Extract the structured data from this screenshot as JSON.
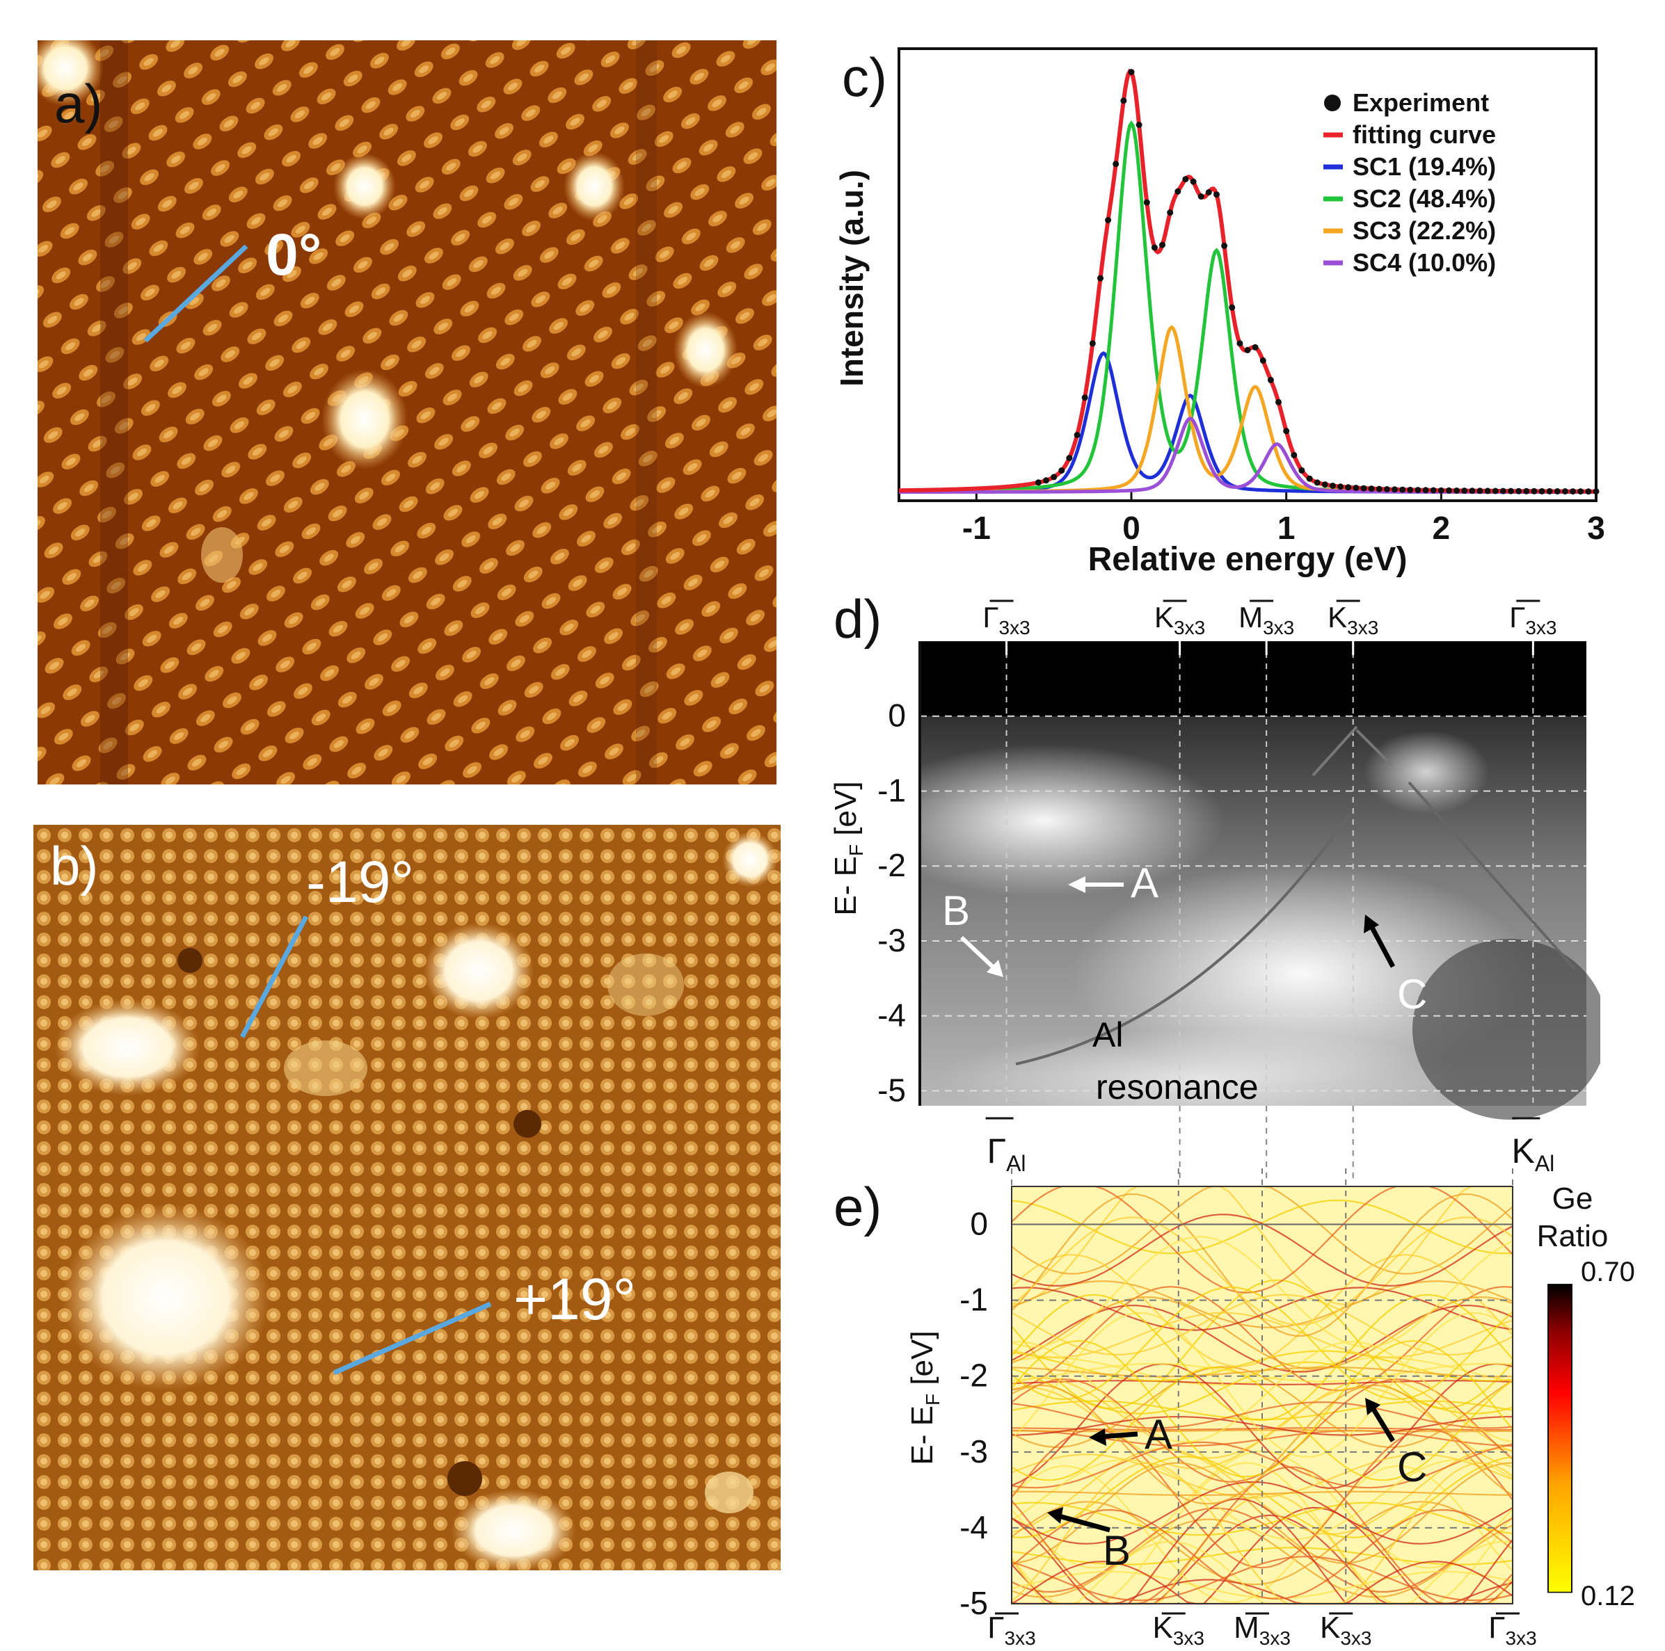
{
  "panels": {
    "a": {
      "label": "a)",
      "angle": "0°"
    },
    "b": {
      "label": "b)",
      "angle_neg": "-19°",
      "angle_pos": "+19°"
    },
    "c": {
      "label": "c)"
    },
    "d": {
      "label": "d)"
    },
    "e": {
      "label": "e)"
    }
  },
  "colors": {
    "stm_base": "#8a3a05",
    "stm_light": "#e6a040",
    "marker_line": "#5aa8e0",
    "experiment": "#111111",
    "fit": "#e8222a",
    "sc1": "#1f2fd8",
    "sc2": "#22c43a",
    "sc3": "#f5a623",
    "sc4": "#9b4fd6"
  },
  "chart_data": [
    {
      "type": "line",
      "title": "",
      "xlabel": "Relative energy (eV)",
      "ylabel": "Intensity (a.u.)",
      "xlim": [
        -1.5,
        3
      ],
      "ylim": [
        0,
        1.05
      ],
      "xticks": [
        -1,
        0,
        1,
        2,
        3
      ],
      "legend_position": "top-right",
      "series": [
        {
          "name": "Experiment",
          "key": "experiment",
          "style": "dots"
        },
        {
          "name": "fitting curve",
          "key": "fit",
          "style": "line"
        },
        {
          "name": "SC1 (19.4%)",
          "key": "sc1",
          "style": "line",
          "peaks": [
            [
              -0.18,
              0.32,
              0.13
            ],
            [
              0.38,
              0.22,
              0.12
            ]
          ]
        },
        {
          "name": "SC2 (48.4%)",
          "key": "sc2",
          "style": "line",
          "peaks": [
            [
              0.0,
              0.85,
              0.13
            ],
            [
              0.55,
              0.55,
              0.12
            ]
          ]
        },
        {
          "name": "SC3 (22.2%)",
          "key": "sc3",
          "style": "line",
          "peaks": [
            [
              0.26,
              0.38,
              0.12
            ],
            [
              0.8,
              0.24,
              0.12
            ]
          ]
        },
        {
          "name": "SC4 (10.0%)",
          "key": "sc4",
          "style": "line",
          "peaks": [
            [
              0.38,
              0.17,
              0.11
            ],
            [
              0.94,
              0.11,
              0.11
            ]
          ]
        }
      ],
      "baseline": 0.02
    },
    {
      "type": "heatmap",
      "ylabel": "E- E",
      "ylabel_sub": "F",
      "ylabel_unit": " [eV]",
      "yticks": [
        "0",
        "-1",
        "-2",
        "-3",
        "-4",
        "-5"
      ],
      "ylim": [
        -5.2,
        1.0
      ],
      "top_kpoints": [
        {
          "base": "Γ",
          "sub": "3x3",
          "pos": 0.13
        },
        {
          "base": "K",
          "sub": "3x3",
          "pos": 0.39
        },
        {
          "base": "M",
          "sub": "3x3",
          "pos": 0.52
        },
        {
          "base": "K",
          "sub": "3x3",
          "pos": 0.65
        },
        {
          "base": "Γ",
          "sub": "3x3",
          "pos": 0.92
        }
      ],
      "bottom_kpoints": [
        {
          "base": "Γ",
          "sub": "Al",
          "pos": 0.13
        },
        {
          "base": "K",
          "sub": "Al",
          "pos": 0.92
        }
      ],
      "annotations": {
        "A": "A",
        "B": "B",
        "C": "C",
        "al": "Al",
        "res": "resonance"
      }
    },
    {
      "type": "heatmap",
      "ylabel": "E- E",
      "ylabel_sub": "F",
      "ylabel_unit": " [eV]",
      "yticks": [
        "0",
        "-1",
        "-2",
        "-3",
        "-4",
        "-5"
      ],
      "ylim": [
        -5,
        0.5
      ],
      "bottom_kpoints": [
        {
          "base": "Γ",
          "sub": "3x3",
          "pos": 0.0
        },
        {
          "base": "K",
          "sub": "3x3",
          "pos": 0.333
        },
        {
          "base": "M",
          "sub": "3x3",
          "pos": 0.5
        },
        {
          "base": "K",
          "sub": "3x3",
          "pos": 0.667
        },
        {
          "base": "Γ",
          "sub": "3x3",
          "pos": 1.0
        }
      ],
      "colorbar": {
        "title_line1": "Ge",
        "title_line2": "Ratio",
        "max": "0.70",
        "min": "0.12"
      },
      "annotations": {
        "A": "A",
        "B": "B",
        "C": "C"
      }
    }
  ]
}
